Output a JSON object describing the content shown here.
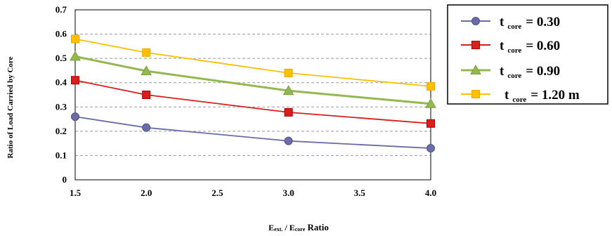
{
  "chart_data": {
    "type": "line",
    "title": "",
    "ylabel": "Ratio of Load Carried by Core",
    "xlabel": {
      "E1": "E",
      "sub1": "ext.",
      "slash": " / E",
      "sub2": "core",
      "rest": " Ratio"
    },
    "x": [
      1.5,
      2.0,
      3.0,
      4.0
    ],
    "xlim": [
      1.5,
      4.0
    ],
    "ylim": [
      0,
      0.7
    ],
    "xticks": [
      "1.5",
      "2.0",
      "2.5",
      "3.0",
      "3.5",
      "4.0"
    ],
    "yticks": [
      "0",
      "0.1",
      "0.2",
      "0.3",
      "0.4",
      "0.5",
      "0.6",
      "0.7"
    ],
    "grid": "horizontal-dashed",
    "legend_position": "right",
    "series": [
      {
        "name": "t core = 0.30",
        "label_main": "t",
        "label_sub": "core",
        "label_value": "= 0.30",
        "color": "#6B6BA8",
        "stroke": "#4F4F8A",
        "marker": "circle",
        "values": [
          0.26,
          0.215,
          0.16,
          0.13
        ]
      },
      {
        "name": "t core = 0.60",
        "label_main": "t",
        "label_sub": "core",
        "label_value": "= 0.60",
        "color": "#D91E1E",
        "stroke": "#B00000",
        "marker": "square",
        "values": [
          0.41,
          0.35,
          0.278,
          0.232
        ]
      },
      {
        "name": "t core = 0.90",
        "label_main": "t",
        "label_sub": "core",
        "label_value": "= 0.90",
        "color": "#92B84F",
        "stroke": "#7AA03A",
        "marker": "triangle",
        "values": [
          0.508,
          0.448,
          0.367,
          0.313
        ]
      },
      {
        "name": "t core = 1.20 m",
        "label_main": "t",
        "label_sub": "core",
        "label_value": "= 1.20 m",
        "color": "#FFC000",
        "stroke": "#F0A800",
        "marker": "square",
        "values": [
          0.58,
          0.524,
          0.44,
          0.385
        ]
      }
    ]
  }
}
